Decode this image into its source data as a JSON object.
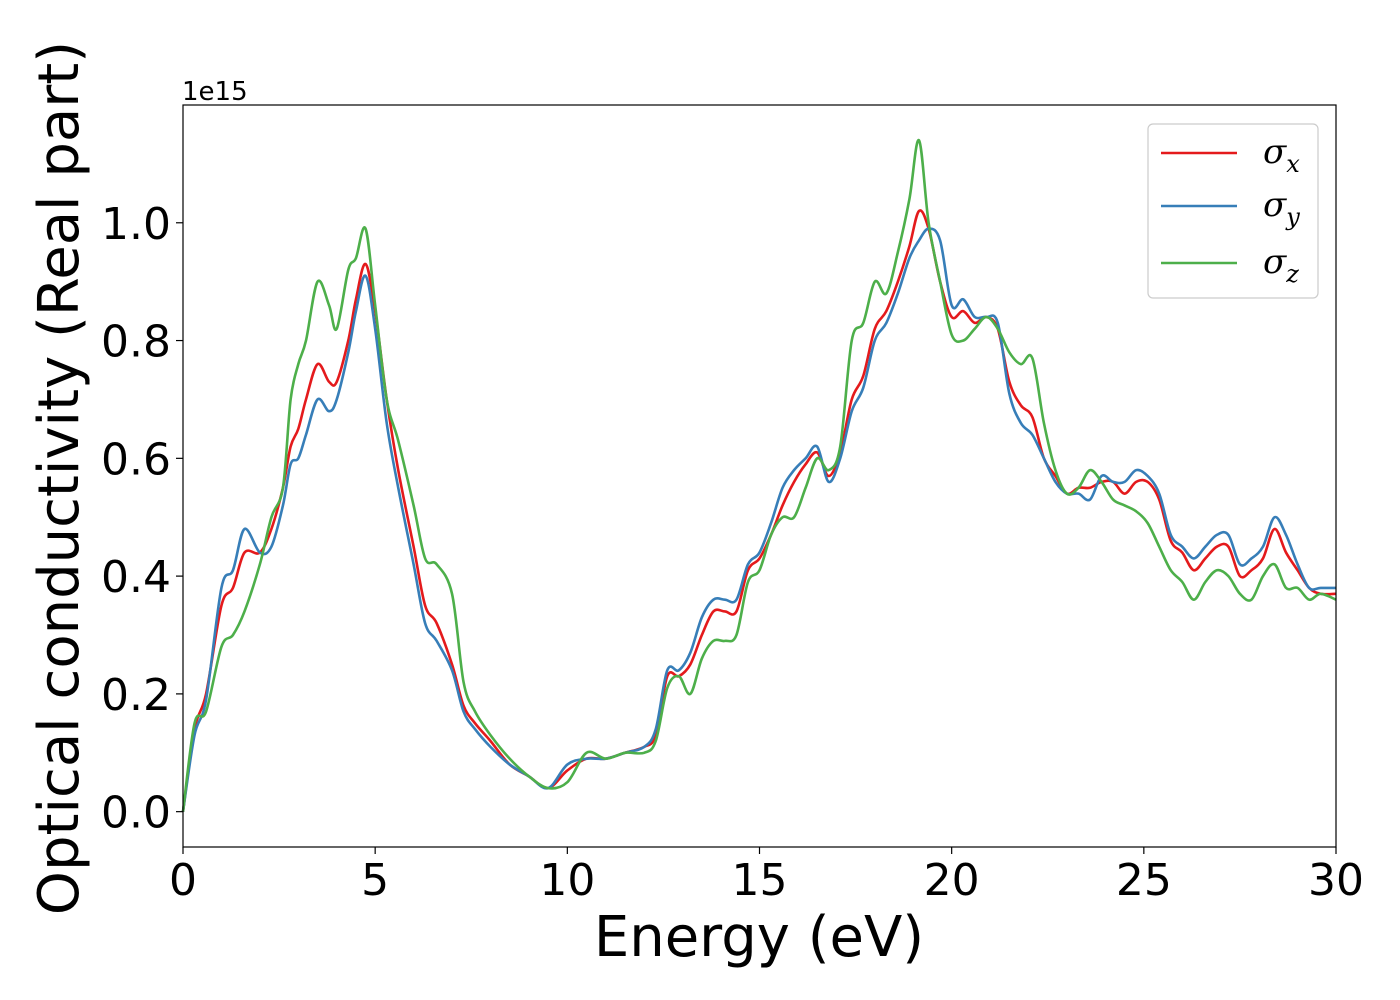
{
  "chart_data": {
    "type": "line",
    "xlabel": "Energy (eV)",
    "ylabel": "Optical conductivity (Real part)",
    "y_offset_text": "1e15",
    "xlim": [
      0,
      30
    ],
    "ylim": [
      -0.06,
      1.2
    ],
    "x_ticks": [
      0,
      5,
      10,
      15,
      20,
      25,
      30
    ],
    "x_tick_labels": [
      "0",
      "5",
      "10",
      "15",
      "20",
      "25",
      "30"
    ],
    "y_ticks": [
      0.0,
      0.2,
      0.4,
      0.6,
      0.8,
      1.0
    ],
    "y_tick_labels": [
      "0.0",
      "0.2",
      "0.4",
      "0.6",
      "0.8",
      "1.0"
    ],
    "grid": false,
    "legend_position": "top-right",
    "x": [
      0.0,
      0.3,
      0.6,
      1.0,
      1.3,
      1.6,
      2.0,
      2.3,
      2.6,
      2.8,
      3.0,
      3.2,
      3.5,
      3.8,
      4.0,
      4.3,
      4.5,
      4.75,
      5.0,
      5.3,
      5.6,
      6.0,
      6.3,
      6.6,
      7.0,
      7.3,
      7.6,
      8.0,
      8.5,
      9.0,
      9.5,
      10.0,
      10.5,
      11.0,
      11.5,
      12.0,
      12.3,
      12.6,
      12.9,
      13.2,
      13.5,
      13.8,
      14.1,
      14.4,
      14.7,
      15.0,
      15.3,
      15.6,
      15.9,
      16.2,
      16.5,
      16.8,
      17.1,
      17.4,
      17.7,
      18.0,
      18.3,
      18.6,
      18.9,
      19.15,
      19.4,
      19.7,
      20.0,
      20.3,
      20.6,
      20.9,
      21.2,
      21.5,
      21.8,
      22.1,
      22.4,
      22.7,
      23.0,
      23.3,
      23.6,
      23.9,
      24.2,
      24.5,
      24.8,
      25.1,
      25.4,
      25.7,
      26.0,
      26.3,
      26.6,
      26.9,
      27.2,
      27.5,
      27.8,
      28.1,
      28.4,
      28.7,
      29.0,
      29.3,
      29.6,
      30.0
    ],
    "series": [
      {
        "name": "σx",
        "label_base": "σ",
        "label_sub": "x",
        "color": "#e41a1c",
        "values": [
          0.0,
          0.14,
          0.2,
          0.35,
          0.38,
          0.44,
          0.44,
          0.48,
          0.55,
          0.62,
          0.65,
          0.7,
          0.76,
          0.73,
          0.73,
          0.8,
          0.87,
          0.93,
          0.85,
          0.7,
          0.58,
          0.45,
          0.35,
          0.32,
          0.25,
          0.18,
          0.15,
          0.12,
          0.08,
          0.06,
          0.04,
          0.07,
          0.09,
          0.09,
          0.1,
          0.11,
          0.13,
          0.23,
          0.23,
          0.25,
          0.3,
          0.34,
          0.34,
          0.34,
          0.41,
          0.43,
          0.47,
          0.52,
          0.56,
          0.59,
          0.61,
          0.57,
          0.61,
          0.7,
          0.74,
          0.82,
          0.85,
          0.9,
          0.96,
          1.02,
          0.99,
          0.9,
          0.84,
          0.85,
          0.83,
          0.84,
          0.82,
          0.73,
          0.69,
          0.67,
          0.6,
          0.57,
          0.54,
          0.55,
          0.55,
          0.56,
          0.56,
          0.54,
          0.56,
          0.56,
          0.53,
          0.46,
          0.44,
          0.41,
          0.43,
          0.45,
          0.45,
          0.4,
          0.41,
          0.43,
          0.48,
          0.44,
          0.41,
          0.38,
          0.37,
          0.37
        ]
      },
      {
        "name": "σy",
        "label_base": "σ",
        "label_sub": "y",
        "color": "#377eb8",
        "values": [
          0.0,
          0.13,
          0.19,
          0.38,
          0.41,
          0.48,
          0.44,
          0.45,
          0.52,
          0.59,
          0.6,
          0.64,
          0.7,
          0.68,
          0.7,
          0.78,
          0.85,
          0.91,
          0.82,
          0.66,
          0.55,
          0.42,
          0.32,
          0.29,
          0.24,
          0.17,
          0.14,
          0.11,
          0.08,
          0.06,
          0.04,
          0.08,
          0.09,
          0.09,
          0.1,
          0.11,
          0.14,
          0.24,
          0.24,
          0.27,
          0.33,
          0.36,
          0.36,
          0.36,
          0.42,
          0.44,
          0.49,
          0.55,
          0.58,
          0.6,
          0.62,
          0.56,
          0.6,
          0.68,
          0.72,
          0.8,
          0.83,
          0.88,
          0.94,
          0.97,
          0.99,
          0.97,
          0.86,
          0.87,
          0.84,
          0.84,
          0.83,
          0.71,
          0.66,
          0.64,
          0.6,
          0.56,
          0.54,
          0.54,
          0.53,
          0.57,
          0.56,
          0.56,
          0.58,
          0.57,
          0.54,
          0.47,
          0.45,
          0.43,
          0.45,
          0.47,
          0.47,
          0.42,
          0.43,
          0.45,
          0.5,
          0.47,
          0.42,
          0.38,
          0.38,
          0.38
        ]
      },
      {
        "name": "σz",
        "label_base": "σ",
        "label_sub": "z",
        "color": "#4daf4a",
        "values": [
          0.0,
          0.15,
          0.17,
          0.28,
          0.3,
          0.34,
          0.42,
          0.5,
          0.55,
          0.7,
          0.76,
          0.8,
          0.9,
          0.86,
          0.82,
          0.92,
          0.94,
          0.99,
          0.86,
          0.7,
          0.63,
          0.52,
          0.43,
          0.42,
          0.37,
          0.22,
          0.17,
          0.13,
          0.09,
          0.06,
          0.04,
          0.05,
          0.1,
          0.09,
          0.1,
          0.1,
          0.12,
          0.21,
          0.23,
          0.2,
          0.26,
          0.29,
          0.29,
          0.3,
          0.39,
          0.41,
          0.47,
          0.5,
          0.5,
          0.55,
          0.6,
          0.58,
          0.62,
          0.8,
          0.83,
          0.9,
          0.88,
          0.95,
          1.04,
          1.14,
          1.0,
          0.9,
          0.81,
          0.8,
          0.82,
          0.84,
          0.82,
          0.78,
          0.76,
          0.77,
          0.66,
          0.58,
          0.54,
          0.55,
          0.58,
          0.56,
          0.53,
          0.52,
          0.51,
          0.49,
          0.45,
          0.41,
          0.39,
          0.36,
          0.39,
          0.41,
          0.4,
          0.37,
          0.36,
          0.4,
          0.42,
          0.38,
          0.38,
          0.36,
          0.37,
          0.36
        ]
      }
    ]
  }
}
